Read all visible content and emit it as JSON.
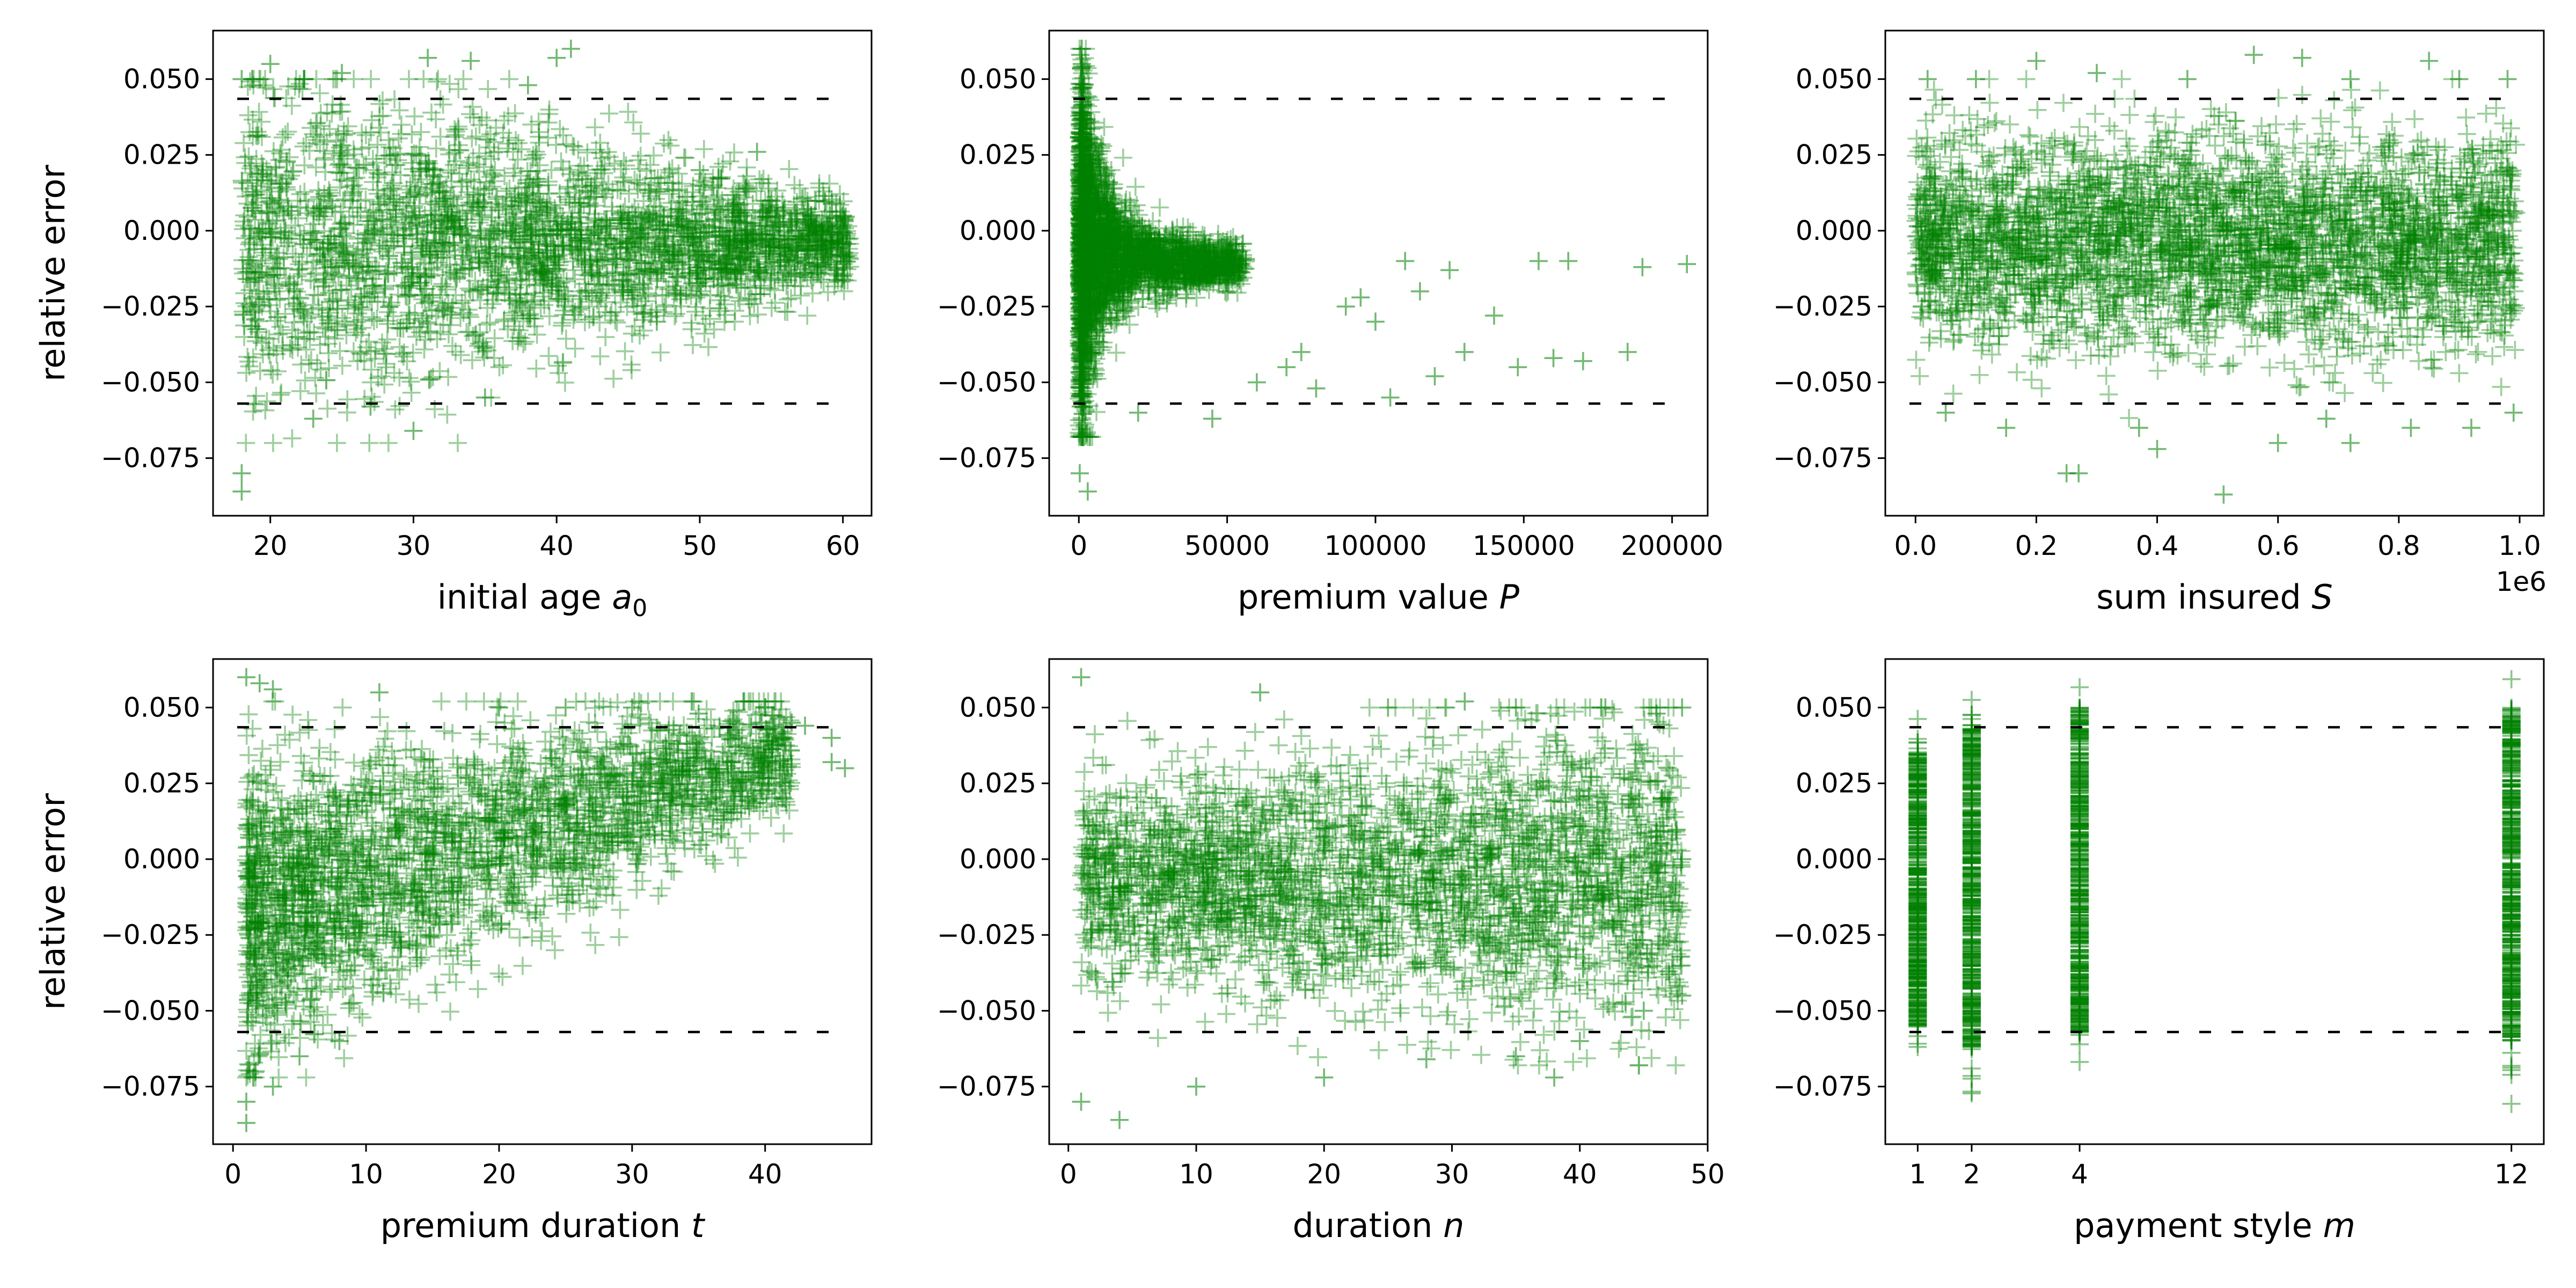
{
  "figure": {
    "marker_color": "#008000",
    "threshold_color": "#000000",
    "threshold_upper": 0.0435,
    "threshold_lower": -0.057,
    "y_ticks": [
      0.05,
      0.025,
      0.0,
      -0.025,
      -0.05,
      -0.075
    ],
    "y_tick_labels": [
      "0.050",
      "0.025",
      "0.000",
      "−0.025",
      "−0.050",
      "−0.075"
    ],
    "ylim": [
      -0.094,
      0.066
    ]
  },
  "chart_data": [
    {
      "type": "scatter",
      "ylabel": "relative error",
      "xlabel": "initial age ",
      "xlabel_symbol": "a",
      "xlabel_subscript": "0",
      "xlim": [
        16,
        62
      ],
      "x_ticks": [
        20,
        30,
        40,
        50,
        60
      ],
      "x_tick_labels": [
        "20",
        "30",
        "40",
        "50",
        "60"
      ],
      "offset_text": "",
      "marker": "plus",
      "sample_points": [
        [
          18,
          0.05
        ],
        [
          18,
          -0.08
        ],
        [
          18,
          -0.086
        ],
        [
          20,
          0.055
        ],
        [
          25,
          0.052
        ],
        [
          31,
          0.057
        ],
        [
          34,
          0.056
        ],
        [
          38,
          0.048
        ],
        [
          40,
          0.057
        ],
        [
          41,
          0.06
        ],
        [
          54,
          0.026
        ],
        [
          23,
          -0.062
        ],
        [
          27,
          -0.058
        ],
        [
          30,
          -0.066
        ],
        [
          55,
          0.01
        ],
        [
          60,
          0.005
        ],
        [
          60,
          -0.015
        ],
        [
          47,
          -0.03
        ],
        [
          35,
          -0.055
        ],
        [
          50,
          0.02
        ]
      ]
    },
    {
      "type": "scatter",
      "ylabel": "",
      "xlabel": "premium value ",
      "xlabel_symbol": "P",
      "xlabel_subscript": "",
      "xlim": [
        -10000,
        212000
      ],
      "x_ticks": [
        0,
        50000,
        100000,
        150000,
        200000
      ],
      "x_tick_labels": [
        "0",
        "50000",
        "100000",
        "150000",
        "200000"
      ],
      "offset_text": "",
      "marker": "plus",
      "sample_points": [
        [
          500,
          0.058
        ],
        [
          1000,
          0.055
        ],
        [
          300,
          -0.08
        ],
        [
          3000,
          -0.086
        ],
        [
          20000,
          -0.06
        ],
        [
          45000,
          -0.062
        ],
        [
          60000,
          -0.05
        ],
        [
          75000,
          -0.04
        ],
        [
          80000,
          -0.052
        ],
        [
          90000,
          -0.025
        ],
        [
          100000,
          -0.03
        ],
        [
          105000,
          -0.055
        ],
        [
          110000,
          -0.01
        ],
        [
          120000,
          -0.048
        ],
        [
          130000,
          -0.04
        ],
        [
          140000,
          -0.028
        ],
        [
          148000,
          -0.045
        ],
        [
          155000,
          -0.01
        ],
        [
          160000,
          -0.042
        ],
        [
          170000,
          -0.043
        ],
        [
          185000,
          -0.04
        ],
        [
          190000,
          -0.012
        ],
        [
          205000,
          -0.011
        ],
        [
          115000,
          -0.02
        ],
        [
          165000,
          -0.01
        ],
        [
          125000,
          -0.013
        ],
        [
          95000,
          -0.022
        ],
        [
          70000,
          -0.045
        ]
      ]
    },
    {
      "type": "scatter",
      "ylabel": "",
      "xlabel": "sum insured ",
      "xlabel_symbol": "S",
      "xlabel_subscript": "",
      "xlim": [
        -0.05,
        1.04
      ],
      "x_ticks": [
        0.0,
        0.2,
        0.4,
        0.6,
        0.8,
        1.0
      ],
      "x_tick_labels": [
        "0.0",
        "0.2",
        "0.4",
        "0.6",
        "0.8",
        "1.0"
      ],
      "offset_text": "1e6",
      "marker": "plus",
      "sample_points": [
        [
          0.02,
          0.05
        ],
        [
          0.1,
          0.05
        ],
        [
          0.2,
          0.056
        ],
        [
          0.3,
          0.052
        ],
        [
          0.45,
          0.05
        ],
        [
          0.56,
          0.058
        ],
        [
          0.64,
          0.057
        ],
        [
          0.72,
          0.05
        ],
        [
          0.85,
          0.056
        ],
        [
          0.9,
          0.05
        ],
        [
          0.98,
          0.05
        ],
        [
          0.05,
          -0.06
        ],
        [
          0.15,
          -0.065
        ],
        [
          0.25,
          -0.08
        ],
        [
          0.27,
          -0.08
        ],
        [
          0.37,
          -0.065
        ],
        [
          0.51,
          -0.087
        ],
        [
          0.6,
          -0.07
        ],
        [
          0.72,
          -0.07
        ],
        [
          0.82,
          -0.065
        ],
        [
          0.92,
          -0.065
        ],
        [
          0.99,
          -0.06
        ],
        [
          0.4,
          -0.072
        ],
        [
          0.68,
          -0.062
        ]
      ]
    },
    {
      "type": "scatter",
      "ylabel": "relative error",
      "xlabel": "premium duration ",
      "xlabel_symbol": "t",
      "xlabel_subscript": "",
      "xlim": [
        -1.5,
        48
      ],
      "x_ticks": [
        0,
        10,
        20,
        30,
        40
      ],
      "x_tick_labels": [
        "0",
        "10",
        "20",
        "30",
        "40"
      ],
      "offset_text": "",
      "marker": "plus",
      "sample_points": [
        [
          1,
          0.06
        ],
        [
          1,
          -0.08
        ],
        [
          1,
          -0.087
        ],
        [
          2,
          0.058
        ],
        [
          3,
          0.056
        ],
        [
          11,
          0.055
        ],
        [
          20,
          0.05
        ],
        [
          25,
          0.05
        ],
        [
          30,
          0.05
        ],
        [
          35,
          0.048
        ],
        [
          40,
          0.05
        ],
        [
          42,
          0.045
        ],
        [
          45,
          0.04
        ],
        [
          46,
          0.03
        ],
        [
          45,
          0.032
        ],
        [
          38,
          0.04
        ],
        [
          3,
          -0.075
        ],
        [
          5,
          -0.065
        ],
        [
          8,
          -0.06
        ],
        [
          33,
          0.028
        ],
        [
          43,
          0.044
        ]
      ]
    },
    {
      "type": "scatter",
      "ylabel": "",
      "xlabel": "duration ",
      "xlabel_symbol": "n",
      "xlabel_subscript": "",
      "xlim": [
        -1.5,
        50
      ],
      "x_ticks": [
        0,
        10,
        20,
        30,
        40,
        50
      ],
      "x_tick_labels": [
        "0",
        "10",
        "20",
        "30",
        "40",
        "50"
      ],
      "offset_text": "",
      "marker": "plus",
      "sample_points": [
        [
          1,
          0.06
        ],
        [
          1,
          -0.08
        ],
        [
          4,
          -0.086
        ],
        [
          15,
          0.055
        ],
        [
          25,
          0.05
        ],
        [
          31,
          0.052
        ],
        [
          35,
          0.05
        ],
        [
          42,
          0.05
        ],
        [
          46,
          0.048
        ],
        [
          48,
          0.05
        ],
        [
          10,
          -0.075
        ],
        [
          20,
          -0.072
        ],
        [
          28,
          -0.066
        ],
        [
          35,
          -0.065
        ],
        [
          40,
          -0.06
        ],
        [
          45,
          -0.05
        ],
        [
          48,
          -0.045
        ],
        [
          47,
          -0.038
        ],
        [
          48,
          0.0
        ],
        [
          38,
          -0.072
        ]
      ]
    },
    {
      "type": "scatter",
      "ylabel": "",
      "xlabel": "payment style ",
      "xlabel_symbol": "m",
      "xlabel_subscript": "",
      "xlim": [
        0.4,
        12.6
      ],
      "x_ticks": [
        1,
        2,
        4,
        12
      ],
      "x_tick_labels": [
        "1",
        "2",
        "4",
        "12"
      ],
      "offset_text": "",
      "marker": "plus",
      "columns": [
        {
          "x": 1,
          "solid_range": [
            -0.055,
            0.035
          ],
          "sparse_range": [
            -0.065,
            0.047
          ]
        },
        {
          "x": 2,
          "solid_range": [
            -0.062,
            0.045
          ],
          "sparse_range": [
            -0.08,
            0.055
          ]
        },
        {
          "x": 4,
          "solid_range": [
            -0.058,
            0.05
          ],
          "sparse_range": [
            -0.07,
            0.058
          ]
        },
        {
          "x": 12,
          "solid_range": [
            -0.06,
            0.05
          ],
          "sparse_range": [
            -0.087,
            0.06
          ]
        }
      ]
    }
  ]
}
